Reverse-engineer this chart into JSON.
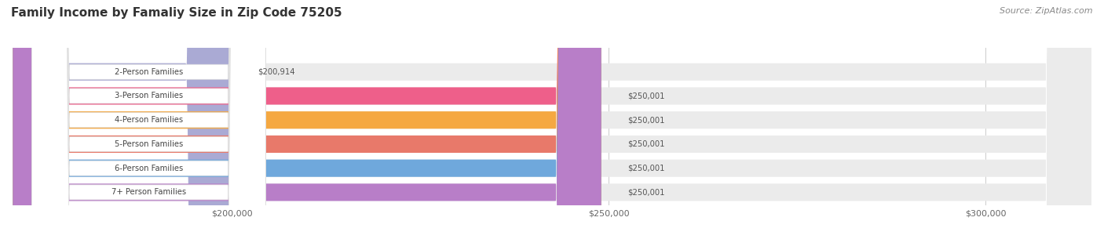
{
  "title": "Family Income by Famaliy Size in Zip Code 75205",
  "source": "Source: ZipAtlas.com",
  "categories": [
    "2-Person Families",
    "3-Person Families",
    "4-Person Families",
    "5-Person Families",
    "6-Person Families",
    "7+ Person Families"
  ],
  "values": [
    200914,
    250001,
    250001,
    250001,
    250001,
    250001
  ],
  "bar_colors": [
    "#aaaad4",
    "#ee5f8a",
    "#f5a841",
    "#e8796a",
    "#6fa8dc",
    "#b87ec8"
  ],
  "value_labels": [
    "$200,914",
    "$250,001",
    "$250,001",
    "$250,001",
    "$250,001",
    "$250,001"
  ],
  "x_ticks": [
    200000,
    250000,
    300000
  ],
  "x_tick_labels": [
    "$200,000",
    "$250,000",
    "$300,000"
  ],
  "xlim_min": 170000,
  "xlim_max": 315000,
  "background_color": "#f7f7f7",
  "title_fontsize": 11,
  "source_fontsize": 8
}
